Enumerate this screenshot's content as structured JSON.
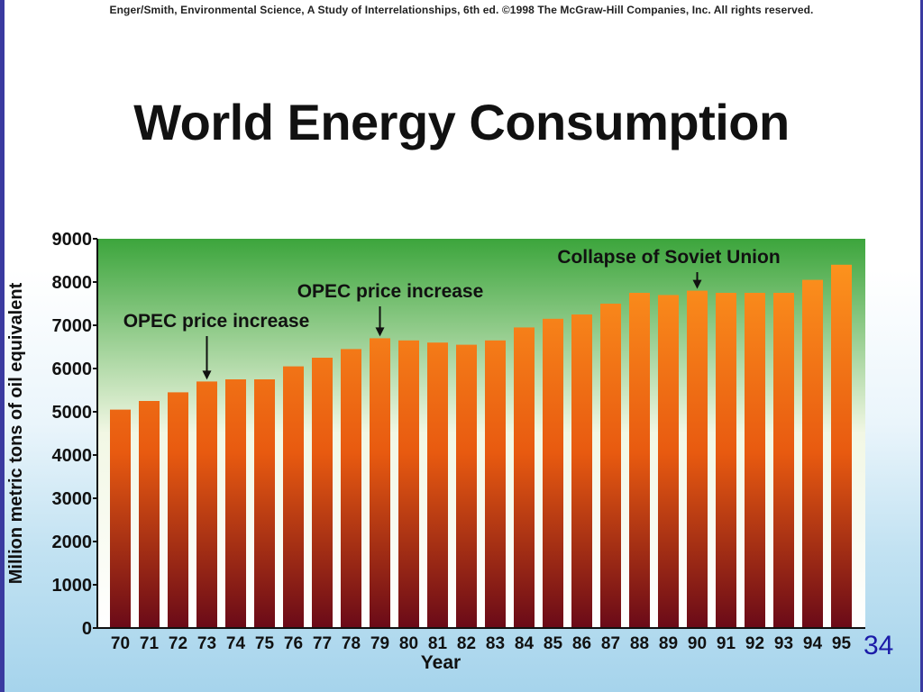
{
  "slide": {
    "credit": "Enger/Smith, Environmental Science, A Study of Interrelationships, 6th ed. ©1998 The McGraw-Hill Companies, Inc. All rights reserved.",
    "title": "World Energy Consumption",
    "page_number": "34"
  },
  "colors": {
    "plot_top": "#3ca53c",
    "plot_bottom": "#ffffff",
    "bar_top": "#ff9a1f",
    "bar_mid": "#e85a10",
    "bar_bottom": "#6a0a18",
    "page_number": "#1b1ba8"
  },
  "chart_data": {
    "type": "bar",
    "title": "World Energy Consumption",
    "xlabel": "Year",
    "ylabel": "Million metric tons of oil equivalent",
    "ylim": [
      0,
      9000
    ],
    "yticks": [
      "0",
      "1000",
      "2000",
      "3000",
      "4000",
      "5000",
      "6000",
      "7000",
      "8000",
      "9000"
    ],
    "grid": false,
    "categories": [
      "70",
      "71",
      "72",
      "73",
      "74",
      "75",
      "76",
      "77",
      "78",
      "79",
      "80",
      "81",
      "82",
      "83",
      "84",
      "85",
      "86",
      "87",
      "88",
      "89",
      "90",
      "91",
      "92",
      "93",
      "94",
      "95"
    ],
    "values": [
      5050,
      5250,
      5450,
      5700,
      5750,
      5750,
      6050,
      6250,
      6450,
      6700,
      6650,
      6600,
      6550,
      6650,
      6950,
      7150,
      7250,
      7500,
      7750,
      7700,
      7800,
      7750,
      7750,
      7750,
      8050,
      8400
    ],
    "annotations": [
      {
        "text": "OPEC price increase",
        "category": "73"
      },
      {
        "text": "OPEC price increase",
        "category": "79"
      },
      {
        "text": "Collapse of Soviet Union",
        "category": "90"
      }
    ]
  }
}
